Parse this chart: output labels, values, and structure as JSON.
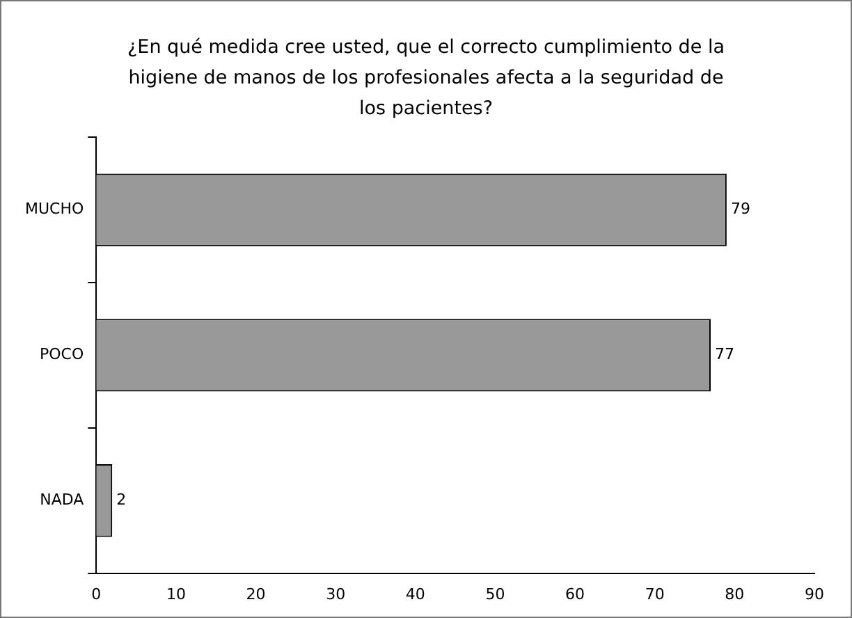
{
  "chart_data": {
    "type": "bar",
    "orientation": "horizontal",
    "title": "¿En qué medida cree usted, que el correcto cumplimiento de la higiene de manos de los profesionales afecta a la seguridad de los pacientes?",
    "categories": [
      "MUCHO",
      "POCO",
      "NADA"
    ],
    "values": [
      79,
      77,
      2
    ],
    "color": "#999999",
    "xlim": [
      0,
      90
    ],
    "xticks": [
      0,
      10,
      20,
      30,
      40,
      50,
      60,
      70,
      80,
      90
    ],
    "data_labels": true,
    "grid": false,
    "legend": false
  }
}
